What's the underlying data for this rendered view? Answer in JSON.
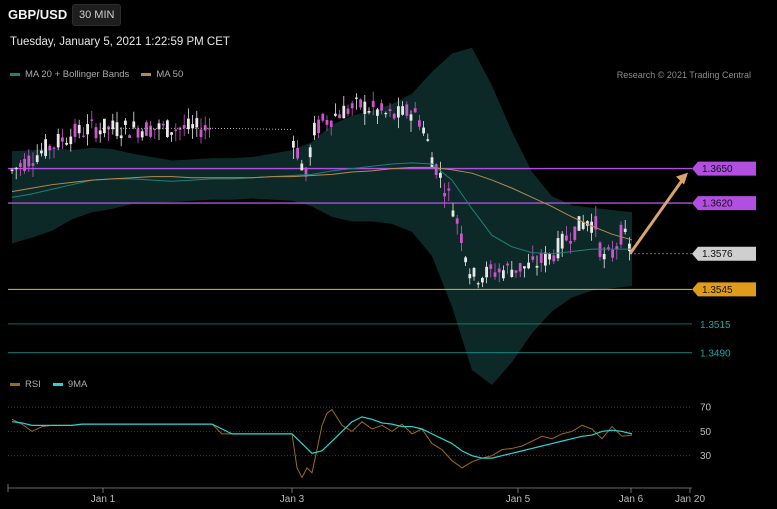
{
  "header": {
    "symbol": "GBP/USD",
    "interval": "30 MIN",
    "datetime": "Tuesday, January 5, 2021 1:22:59 PM CET",
    "credit": "Research © 2021 Trading Central"
  },
  "colors": {
    "background": "#000000",
    "bollinger_fill": "#0d2e2c",
    "ma20": "#1f7f7a",
    "ma50": "#b58a52",
    "resistance": "#b14fe0",
    "support": "#e09b1a",
    "support_minor": "#1aa6a0",
    "current_price": "#cfcfcf",
    "arrow": "#d9a46a",
    "rsi": "#9a6a1e",
    "rsi_ma": "#2bd3d3",
    "candle_up": "#e8e8e8",
    "candle_down": "#cc55cc"
  },
  "chart_data": [
    {
      "type": "line",
      "title": "GBP/USD",
      "x_axis_ticks": [
        "Jan 1",
        "Jan 3",
        "Jan 5",
        "Jan 6",
        "Jan 20"
      ],
      "series": [
        {
          "name": "MA 20 + Bollinger Bands",
          "x": [
            0,
            20,
            40,
            60,
            80,
            100,
            120,
            140,
            160,
            180,
            200,
            220,
            240,
            260,
            280,
            300,
            320,
            340,
            360,
            380,
            400,
            420,
            440,
            460,
            480,
            500,
            520,
            540,
            560,
            580,
            600,
            620
          ],
          "values": [
            1.3625,
            1.3628,
            1.3632,
            1.3636,
            1.364,
            1.3641,
            1.3641,
            1.364,
            1.3639,
            1.364,
            1.3641,
            1.3641,
            1.3642,
            1.3643,
            1.3644,
            1.3645,
            1.3648,
            1.365,
            1.3652,
            1.3654,
            1.3655,
            1.3654,
            1.364,
            1.3615,
            1.3592,
            1.3582,
            1.3577,
            1.3576,
            1.3578,
            1.358,
            1.358,
            1.358
          ]
        },
        {
          "name": "MA 50",
          "x": [
            0,
            20,
            40,
            60,
            80,
            100,
            120,
            140,
            160,
            180,
            200,
            220,
            240,
            260,
            280,
            300,
            320,
            340,
            360,
            380,
            400,
            420,
            440,
            460,
            480,
            500,
            520,
            540,
            560,
            580,
            600,
            620
          ],
          "values": [
            1.363,
            1.3633,
            1.3636,
            1.3638,
            1.364,
            1.3641,
            1.3642,
            1.3643,
            1.3643,
            1.3642,
            1.3642,
            1.3642,
            1.3642,
            1.3643,
            1.3643,
            1.3644,
            1.3645,
            1.3647,
            1.3648,
            1.365,
            1.3651,
            1.3651,
            1.3649,
            1.3646,
            1.364,
            1.3633,
            1.3625,
            1.3617,
            1.3608,
            1.36,
            1.3593,
            1.3588
          ]
        }
      ],
      "price_levels": [
        {
          "label": "1.3650",
          "value": 1.365,
          "kind": "resistance"
        },
        {
          "label": "1.3620",
          "value": 1.362,
          "kind": "resistance"
        },
        {
          "label": "1.3576",
          "value": 1.3576,
          "kind": "current"
        },
        {
          "label": "1.3545",
          "value": 1.3545,
          "kind": "support"
        },
        {
          "label": "1.3515",
          "value": 1.3515,
          "kind": "support_minor"
        },
        {
          "label": "1.3490",
          "value": 1.349,
          "kind": "support_minor"
        }
      ],
      "projection_arrow": {
        "from": 1.3576,
        "to": 1.365
      },
      "ylim": [
        1.3475,
        1.372
      ]
    },
    {
      "type": "line",
      "title": "RSI",
      "y_ticks": [
        "70",
        "50",
        "30"
      ],
      "ylim": [
        10,
        80
      ],
      "series": [
        {
          "name": "RSI",
          "x": [
            0,
            10,
            20,
            30,
            40,
            50,
            60,
            70,
            80,
            90,
            100,
            110,
            120,
            130,
            140,
            150,
            160,
            170,
            180,
            190,
            200,
            210,
            220,
            230,
            240,
            250,
            260,
            270,
            280,
            285,
            290,
            295,
            300,
            305,
            310,
            315,
            320,
            330,
            340,
            350,
            360,
            370,
            380,
            390,
            400,
            410,
            420,
            430,
            440,
            450,
            460,
            470,
            480,
            490,
            500,
            510,
            520,
            530,
            540,
            550,
            560,
            570,
            580,
            590,
            600,
            610,
            620
          ],
          "values": [
            60,
            56,
            50,
            54,
            55,
            55,
            55,
            56,
            56,
            56,
            56,
            56,
            56,
            56,
            56,
            56,
            56,
            56,
            56,
            56,
            56,
            48,
            48,
            48,
            48,
            48,
            48,
            48,
            48,
            20,
            12,
            20,
            16,
            35,
            55,
            65,
            68,
            55,
            50,
            58,
            52,
            55,
            50,
            56,
            48,
            52,
            40,
            35,
            26,
            20,
            25,
            28,
            30,
            35,
            36,
            38,
            42,
            46,
            44,
            48,
            50,
            55,
            52,
            44,
            54,
            46,
            47
          ]
        },
        {
          "name": "9MA",
          "x": [
            0,
            10,
            20,
            30,
            40,
            50,
            60,
            70,
            80,
            90,
            100,
            110,
            120,
            130,
            140,
            150,
            160,
            170,
            180,
            190,
            200,
            210,
            220,
            230,
            240,
            250,
            260,
            270,
            280,
            290,
            300,
            310,
            320,
            330,
            340,
            350,
            360,
            370,
            380,
            390,
            400,
            410,
            420,
            430,
            440,
            450,
            460,
            470,
            480,
            490,
            500,
            510,
            520,
            530,
            540,
            550,
            560,
            570,
            580,
            590,
            600,
            610,
            620
          ],
          "values": [
            58,
            57,
            55,
            55,
            55,
            55,
            55,
            56,
            56,
            56,
            56,
            56,
            56,
            56,
            56,
            56,
            56,
            56,
            56,
            56,
            56,
            52,
            48,
            48,
            48,
            48,
            48,
            48,
            48,
            40,
            32,
            34,
            42,
            50,
            58,
            62,
            60,
            57,
            56,
            54,
            54,
            52,
            48,
            44,
            40,
            34,
            30,
            28,
            28,
            30,
            32,
            34,
            36,
            38,
            40,
            42,
            44,
            46,
            47,
            50,
            51,
            50,
            48
          ]
        }
      ]
    }
  ]
}
